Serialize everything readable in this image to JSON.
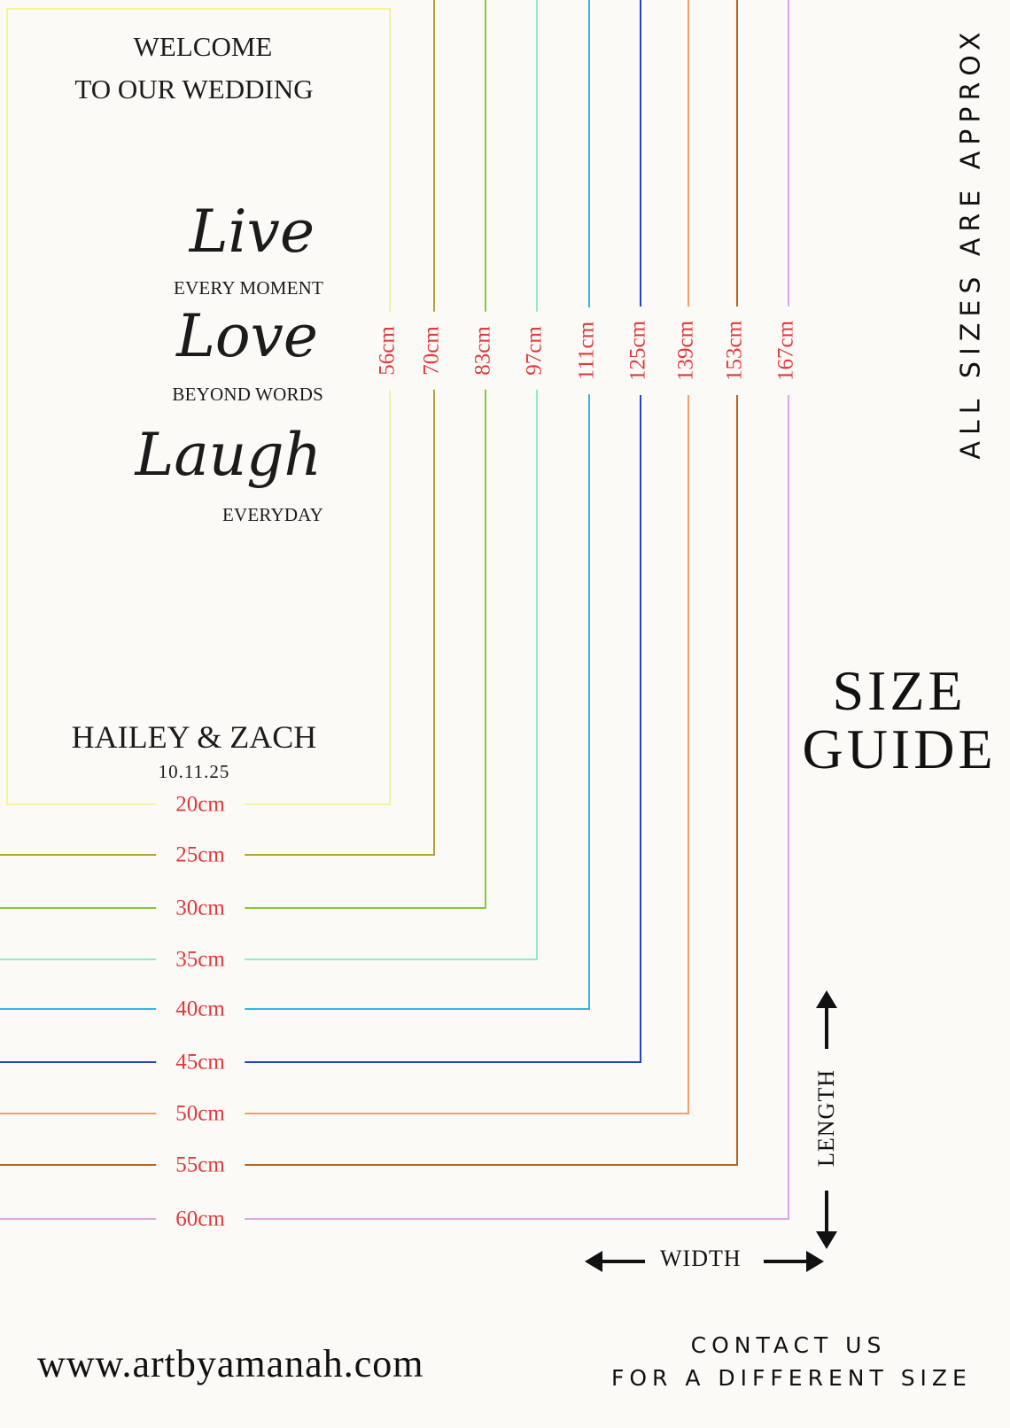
{
  "print": {
    "welcome_line1": "WELCOME",
    "welcome_line2": "TO OUR WEDDING",
    "word1": "Live",
    "tag1": "EVERY MOMENT",
    "word2": "Love",
    "tag2": "BEYOND WORDS",
    "word3": "Laugh",
    "tag3": "EVERYDAY",
    "names": "HAILEY & ZACH",
    "date": "10.11.25"
  },
  "sizes": [
    {
      "width_label": "20cm",
      "length_label": "56cm",
      "color": "#f2f59a"
    },
    {
      "width_label": "25cm",
      "length_label": "70cm",
      "color": "#b8a032"
    },
    {
      "width_label": "30cm",
      "length_label": "83cm",
      "color": "#84c83c"
    },
    {
      "width_label": "35cm",
      "length_label": "97cm",
      "color": "#8eecc6"
    },
    {
      "width_label": "40cm",
      "length_label": "111cm",
      "color": "#2cb8e0"
    },
    {
      "width_label": "45cm",
      "length_label": "125cm",
      "color": "#2442c4"
    },
    {
      "width_label": "50cm",
      "length_label": "139cm",
      "color": "#f0a070"
    },
    {
      "width_label": "55cm",
      "length_label": "153cm",
      "color": "#b8641e"
    },
    {
      "width_label": "60cm",
      "length_label": "167cm",
      "color": "#dca8e6"
    }
  ],
  "notes": {
    "approx": "ALL SIZES ARE APPROX",
    "guide_line1": "SIZE",
    "guide_line2": "GUIDE",
    "length": "LENGTH",
    "width": "WIDTH",
    "website": "www.artbyamanah.com",
    "contact_line1": "CONTACT US",
    "contact_line2": "FOR A DIFFERENT SIZE"
  },
  "colors": {
    "background": "#fcfaf6",
    "label_red": "#e0383b",
    "ink": "#111111"
  }
}
